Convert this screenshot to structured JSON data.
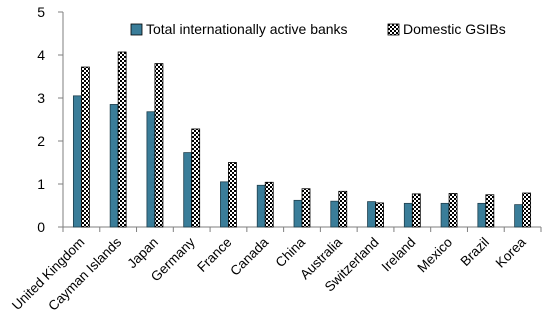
{
  "chart_data": {
    "type": "bar",
    "categories": [
      "United Kingdom",
      "Cayman Islands",
      "Japan",
      "Germany",
      "France",
      "Canada",
      "China",
      "Australia",
      "Switzerland",
      "Ireland",
      "Mexico",
      "Brazil",
      "Korea"
    ],
    "series": [
      {
        "name": "Total internationally active banks",
        "values": [
          3.05,
          2.85,
          2.68,
          1.73,
          1.05,
          0.97,
          0.62,
          0.6,
          0.59,
          0.55,
          0.55,
          0.55,
          0.52
        ],
        "color": "#3A7D99",
        "pattern": "solid"
      },
      {
        "name": "Domestic GSIBs",
        "values": [
          3.72,
          4.07,
          3.8,
          2.28,
          1.5,
          1.04,
          0.89,
          0.83,
          0.56,
          0.77,
          0.78,
          0.75,
          0.79
        ],
        "color": "#000000",
        "pattern": "checker"
      }
    ],
    "title": "",
    "xlabel": "",
    "ylabel": "",
    "ylim": [
      0,
      5
    ],
    "yticks": [
      "0",
      "1",
      "2",
      "3",
      "4",
      "5"
    ],
    "grid": false,
    "legend_position": "top"
  }
}
